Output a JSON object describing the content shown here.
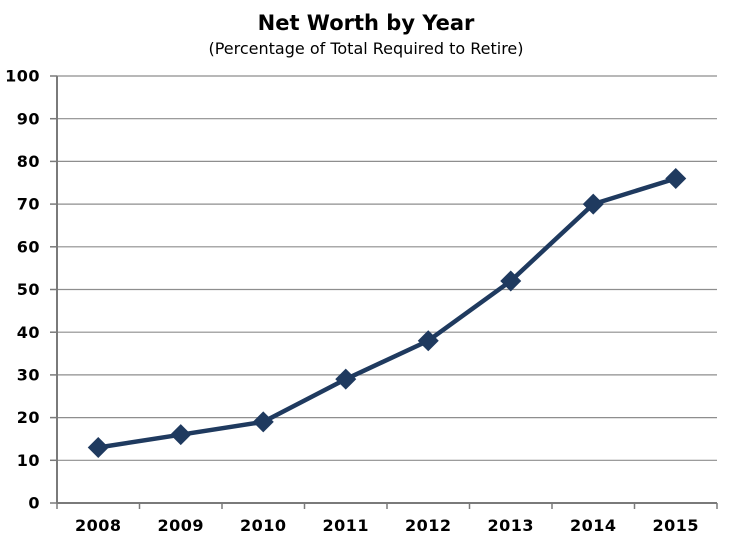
{
  "chart_data": {
    "type": "line",
    "title": "Net Worth by Year",
    "subtitle": "(Percentage of Total Required to Retire)",
    "categories": [
      "2008",
      "2009",
      "2010",
      "2011",
      "2012",
      "2013",
      "2014",
      "2015"
    ],
    "values": [
      13,
      16,
      19,
      29,
      38,
      52,
      70,
      76
    ],
    "xlabel": "",
    "ylabel": "",
    "ylim": [
      0,
      100
    ],
    "ytick_step": 10,
    "ytick_labels": [
      "0",
      "10",
      "20",
      "30",
      "40",
      "50",
      "60",
      "70",
      "80",
      "90",
      "100"
    ],
    "grid": "horizontal",
    "legend": "none",
    "marker": "diamond",
    "colors": {
      "line": "#1f3a5f",
      "marker": "#1f3a5f",
      "gridline": "#8e8e8e",
      "axis": "#7a7a7a",
      "text": "#000000",
      "background": "#ffffff"
    }
  }
}
